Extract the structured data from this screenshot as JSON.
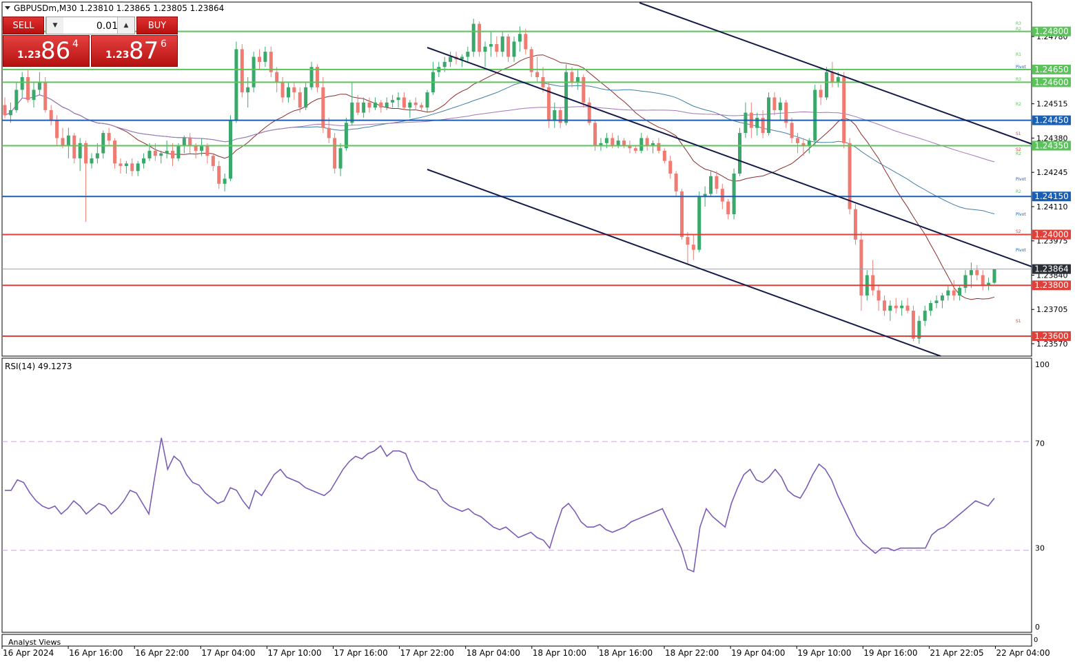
{
  "header": {
    "symbol_info": "GBPUSDm,M30  1.23810 1.23865 1.23805 1.23864"
  },
  "trade_panel": {
    "sell_label": "SELL",
    "buy_label": "BUY",
    "volume": "0.01",
    "bid_small": "1.23",
    "bid_big": "86",
    "bid_sup": "4",
    "ask_small": "1.23",
    "ask_big": "87",
    "ask_sup": "6"
  },
  "price_axis": {
    "ticks": [
      "1.24780",
      "1.24515",
      "1.24380",
      "1.24245",
      "1.24110",
      "1.23975",
      "1.23840",
      "1.23705",
      "1.23570"
    ]
  },
  "level_tags": [
    {
      "label": "1.24800",
      "color": "#5cc35c"
    },
    {
      "label": "1.24650",
      "color": "#5cc35c"
    },
    {
      "label": "1.24600",
      "color": "#5cc35c"
    },
    {
      "label": "1.24450",
      "color": "#1a5fb4"
    },
    {
      "label": "1.24350",
      "color": "#5cc35c"
    },
    {
      "label": "1.24150",
      "color": "#1a5fb4"
    },
    {
      "label": "1.24000",
      "color": "#e0403a"
    },
    {
      "label": "1.23864",
      "color": "#2a2f35"
    },
    {
      "label": "1.23800",
      "color": "#e0403a"
    },
    {
      "label": "1.23600",
      "color": "#e0403a"
    }
  ],
  "pivot_labels": [
    {
      "text": "R3",
      "color": "#5cc35c"
    },
    {
      "text": "R2",
      "color": "#5cc35c"
    },
    {
      "text": "R1",
      "color": "#5cc35c"
    },
    {
      "text": "Pivot",
      "color": "#1a5fb4"
    },
    {
      "text": "R3",
      "color": "#5cc35c"
    },
    {
      "text": "R2",
      "color": "#5cc35c"
    },
    {
      "text": "S1",
      "color": "#e0403a"
    },
    {
      "text": "S2",
      "color": "#e0403a"
    },
    {
      "text": "R2",
      "color": "#5cc35c"
    },
    {
      "text": "Pivot",
      "color": "#1a5fb4"
    },
    {
      "text": "R2",
      "color": "#5cc35c"
    },
    {
      "text": "Pivot",
      "color": "#1a5fb4"
    },
    {
      "text": "S2",
      "color": "#e0403a"
    },
    {
      "text": "Pivot",
      "color": "#1a5fb4"
    },
    {
      "text": "S1",
      "color": "#e0403a"
    }
  ],
  "rsi": {
    "label": "RSI(14) 49.1273",
    "axis_labels": [
      "100",
      "70",
      "30",
      "0"
    ],
    "values": [
      52,
      52,
      56,
      55,
      51,
      48,
      46,
      45,
      46,
      43,
      45,
      48,
      46,
      43,
      45,
      47,
      46,
      43,
      45,
      48,
      52,
      51,
      47,
      43,
      58,
      72,
      60,
      65,
      63,
      58,
      55,
      54,
      51,
      49,
      47,
      48,
      53,
      52,
      48,
      45,
      52,
      50,
      54,
      58,
      60,
      57,
      56,
      55,
      53,
      52,
      51,
      50,
      52,
      56,
      60,
      63,
      65,
      64,
      66,
      67,
      69,
      65,
      67,
      67,
      66,
      60,
      56,
      55,
      53,
      52,
      48,
      46,
      45,
      44,
      45,
      43,
      42,
      40,
      38,
      37,
      38,
      36,
      34,
      35,
      36,
      34,
      33,
      30,
      38,
      45,
      47,
      44,
      40,
      38,
      38,
      39,
      37,
      36,
      37,
      38,
      40,
      41,
      42,
      43,
      44,
      45,
      40,
      35,
      30,
      22,
      21,
      38,
      45,
      42,
      40,
      38,
      47,
      53,
      58,
      60,
      56,
      55,
      57,
      60,
      57,
      52,
      50,
      49,
      53,
      58,
      62,
      60,
      56,
      50,
      45,
      40,
      35,
      32,
      30,
      28,
      30,
      30,
      29,
      30,
      30,
      30,
      30,
      30,
      35,
      37,
      38,
      40,
      42,
      44,
      46,
      48,
      47,
      46,
      49
    ],
    "color": "#7a5bb5"
  },
  "time_axis": {
    "labels": [
      "16 Apr 2024",
      "16 Apr 16:00",
      "16 Apr 22:00",
      "17 Apr 04:00",
      "17 Apr 10:00",
      "17 Apr 16:00",
      "17 Apr 22:00",
      "18 Apr 04:00",
      "18 Apr 10:00",
      "18 Apr 16:00",
      "18 Apr 22:00",
      "19 Apr 04:00",
      "19 Apr 10:00",
      "19 Apr 16:00",
      "21 Apr 22:05",
      "22 Apr 04:00"
    ]
  },
  "analyst_views_label": "Analyst Views",
  "sub_axis_zero": "0",
  "colors": {
    "bull": "#3aa86a",
    "bear": "#ef7b73",
    "ma_fast": "#8b2a2a",
    "ma_mid": "#3f7ea8",
    "ma_slow": "#a274b8",
    "channel": "#141a4a"
  },
  "candles": [
    [
      1.2451,
      1.2454,
      1.2446,
      1.2447
    ],
    [
      1.2447,
      1.2452,
      1.2444,
      1.2449
    ],
    [
      1.2449,
      1.246,
      1.2448,
      1.2457
    ],
    [
      1.2457,
      1.2464,
      1.2454,
      1.2462
    ],
    [
      1.2462,
      1.2465,
      1.2452,
      1.2453
    ],
    [
      1.2453,
      1.246,
      1.245,
      1.2457
    ],
    [
      1.2457,
      1.2464,
      1.2455,
      1.246
    ],
    [
      1.246,
      1.2462,
      1.2448,
      1.2449
    ],
    [
      1.2449,
      1.2451,
      1.2443,
      1.2445
    ],
    [
      1.2445,
      1.2447,
      1.2435,
      1.2438
    ],
    [
      1.2438,
      1.2442,
      1.2434,
      1.2435
    ],
    [
      1.2435,
      1.2442,
      1.243,
      1.2439
    ],
    [
      1.2439,
      1.244,
      1.2428,
      1.243
    ],
    [
      1.243,
      1.2438,
      1.2425,
      1.2436
    ],
    [
      1.2436,
      1.2437,
      1.2405,
      1.2428
    ],
    [
      1.2428,
      1.2432,
      1.2426,
      1.243
    ],
    [
      1.243,
      1.2436,
      1.2428,
      1.2432
    ],
    [
      1.2432,
      1.2441,
      1.243,
      1.244
    ],
    [
      1.244,
      1.2442,
      1.2435,
      1.2437
    ],
    [
      1.2437,
      1.2438,
      1.2426,
      1.2428
    ],
    [
      1.2428,
      1.243,
      1.2424,
      1.2427
    ],
    [
      1.2427,
      1.2429,
      1.2424,
      1.2428
    ],
    [
      1.2428,
      1.243,
      1.2423,
      1.2425
    ],
    [
      1.2425,
      1.2429,
      1.2423,
      1.2428
    ],
    [
      1.2428,
      1.2432,
      1.2426,
      1.243
    ],
    [
      1.243,
      1.2436,
      1.2429,
      1.2433
    ],
    [
      1.2433,
      1.2436,
      1.2429,
      1.2431
    ],
    [
      1.2431,
      1.2433,
      1.2428,
      1.2432
    ],
    [
      1.2432,
      1.2437,
      1.243,
      1.2433
    ],
    [
      1.2433,
      1.2436,
      1.2427,
      1.243
    ],
    [
      1.243,
      1.2436,
      1.2429,
      1.2435
    ],
    [
      1.2435,
      1.2439,
      1.2432,
      1.2438
    ],
    [
      1.2438,
      1.244,
      1.2432,
      1.2435
    ],
    [
      1.2435,
      1.2436,
      1.243,
      1.2433
    ],
    [
      1.2433,
      1.2438,
      1.2431,
      1.2435
    ],
    [
      1.2435,
      1.2436,
      1.2428,
      1.2431
    ],
    [
      1.2431,
      1.2432,
      1.2425,
      1.2427
    ],
    [
      1.2427,
      1.2429,
      1.2418,
      1.242
    ],
    [
      1.242,
      1.2424,
      1.2417,
      1.2422
    ],
    [
      1.2422,
      1.2447,
      1.2421,
      1.2445
    ],
    [
      1.2445,
      1.2476,
      1.2444,
      1.2473
    ],
    [
      1.2473,
      1.2475,
      1.2454,
      1.2456
    ],
    [
      1.2456,
      1.2462,
      1.245,
      1.2458
    ],
    [
      1.2458,
      1.2472,
      1.2456,
      1.247
    ],
    [
      1.247,
      1.2473,
      1.2465,
      1.2468
    ],
    [
      1.2468,
      1.2474,
      1.2466,
      1.2472
    ],
    [
      1.2472,
      1.2474,
      1.2462,
      1.2464
    ],
    [
      1.2464,
      1.2466,
      1.2456,
      1.246
    ],
    [
      1.246,
      1.2462,
      1.2452,
      1.2454
    ],
    [
      1.2454,
      1.246,
      1.2452,
      1.2458
    ],
    [
      1.2458,
      1.246,
      1.2453,
      1.2456
    ],
    [
      1.2456,
      1.2458,
      1.2448,
      1.245
    ],
    [
      1.245,
      1.246,
      1.2449,
      1.2458
    ],
    [
      1.2458,
      1.2468,
      1.2457,
      1.2466
    ],
    [
      1.2466,
      1.2467,
      1.2456,
      1.2458
    ],
    [
      1.2458,
      1.2462,
      1.244,
      1.2442
    ],
    [
      1.2442,
      1.2446,
      1.2436,
      1.2438
    ],
    [
      1.2438,
      1.244,
      1.2424,
      1.2426
    ],
    [
      1.2426,
      1.2436,
      1.2423,
      1.2434
    ],
    [
      1.2434,
      1.2446,
      1.2433,
      1.2444
    ],
    [
      1.2444,
      1.246,
      1.2443,
      1.2452
    ],
    [
      1.2452,
      1.2455,
      1.2447,
      1.2448
    ],
    [
      1.2448,
      1.2454,
      1.2446,
      1.2452
    ],
    [
      1.2452,
      1.2454,
      1.2448,
      1.245
    ],
    [
      1.245,
      1.2454,
      1.2449,
      1.2452
    ],
    [
      1.2452,
      1.2453,
      1.2448,
      1.245
    ],
    [
      1.245,
      1.2454,
      1.2449,
      1.2452
    ],
    [
      1.2452,
      1.2455,
      1.245,
      1.2453
    ],
    [
      1.2453,
      1.2456,
      1.245,
      1.2454
    ],
    [
      1.2454,
      1.2456,
      1.2449,
      1.245
    ],
    [
      1.245,
      1.2453,
      1.2446,
      1.2452
    ],
    [
      1.2452,
      1.2454,
      1.2449,
      1.2451
    ],
    [
      1.2451,
      1.2452,
      1.2449,
      1.245
    ],
    [
      1.245,
      1.2457,
      1.2448,
      1.2456
    ],
    [
      1.2456,
      1.2468,
      1.2455,
      1.2464
    ],
    [
      1.2464,
      1.2468,
      1.2462,
      1.2466
    ],
    [
      1.2466,
      1.247,
      1.2464,
      1.2468
    ],
    [
      1.2468,
      1.2472,
      1.2466,
      1.247
    ],
    [
      1.247,
      1.2472,
      1.2467,
      1.2469
    ],
    [
      1.2469,
      1.2471,
      1.2466,
      1.247
    ],
    [
      1.247,
      1.2474,
      1.2468,
      1.2472
    ],
    [
      1.2472,
      1.2485,
      1.247,
      1.2483
    ],
    [
      1.2483,
      1.2484,
      1.247,
      1.2472
    ],
    [
      1.2472,
      1.2476,
      1.2466,
      1.2474
    ],
    [
      1.2474,
      1.248,
      1.247,
      1.2475
    ],
    [
      1.2475,
      1.2478,
      1.247,
      1.2472
    ],
    [
      1.2472,
      1.248,
      1.247,
      1.2478
    ],
    [
      1.2478,
      1.2479,
      1.2468,
      1.247
    ],
    [
      1.247,
      1.2478,
      1.2468,
      1.2476
    ],
    [
      1.2476,
      1.2482,
      1.2472,
      1.2479
    ],
    [
      1.2479,
      1.2481,
      1.2471,
      1.2473
    ],
    [
      1.2473,
      1.2474,
      1.2462,
      1.2464
    ],
    [
      1.2464,
      1.247,
      1.246,
      1.2462
    ],
    [
      1.2462,
      1.2466,
      1.2456,
      1.2458
    ],
    [
      1.2458,
      1.246,
      1.2442,
      1.2445
    ],
    [
      1.2445,
      1.2452,
      1.2442,
      1.2449
    ],
    [
      1.2449,
      1.245,
      1.2442,
      1.2444
    ],
    [
      1.2444,
      1.2467,
      1.2443,
      1.2464
    ],
    [
      1.2464,
      1.2466,
      1.2458,
      1.246
    ],
    [
      1.246,
      1.2465,
      1.2457,
      1.2462
    ],
    [
      1.2462,
      1.2463,
      1.245,
      1.2452
    ],
    [
      1.2452,
      1.2454,
      1.2443,
      1.2444
    ],
    [
      1.2444,
      1.2445,
      1.2433,
      1.2435
    ],
    [
      1.2435,
      1.2438,
      1.2433,
      1.2436
    ],
    [
      1.2436,
      1.244,
      1.2434,
      1.2438
    ],
    [
      1.2438,
      1.244,
      1.2434,
      1.2435
    ],
    [
      1.2435,
      1.2439,
      1.2434,
      1.2437
    ],
    [
      1.2437,
      1.2438,
      1.2434,
      1.2435
    ],
    [
      1.2435,
      1.2437,
      1.2432,
      1.2434
    ],
    [
      1.2434,
      1.2435,
      1.2432,
      1.2433
    ],
    [
      1.2433,
      1.244,
      1.2432,
      1.2438
    ],
    [
      1.2438,
      1.2439,
      1.2433,
      1.2435
    ],
    [
      1.2435,
      1.2437,
      1.2432,
      1.2436
    ],
    [
      1.2436,
      1.2438,
      1.2432,
      1.2433
    ],
    [
      1.2433,
      1.2434,
      1.2428,
      1.2429
    ],
    [
      1.2429,
      1.2431,
      1.2422,
      1.2424
    ],
    [
      1.2424,
      1.2425,
      1.2415,
      1.2417
    ],
    [
      1.2417,
      1.2418,
      1.2398,
      1.2399
    ],
    [
      1.2399,
      1.2401,
      1.2388,
      1.2396
    ],
    [
      1.2396,
      1.24,
      1.239,
      1.2394
    ],
    [
      1.2394,
      1.2417,
      1.2393,
      1.2415
    ],
    [
      1.2415,
      1.2419,
      1.2411,
      1.2416
    ],
    [
      1.2416,
      1.2425,
      1.2415,
      1.2423
    ],
    [
      1.2423,
      1.2425,
      1.2416,
      1.2418
    ],
    [
      1.2418,
      1.242,
      1.241,
      1.2413
    ],
    [
      1.2413,
      1.2414,
      1.2406,
      1.2408
    ],
    [
      1.2408,
      1.2426,
      1.2406,
      1.2424
    ],
    [
      1.2424,
      1.2442,
      1.2423,
      1.244
    ],
    [
      1.244,
      1.2452,
      1.2438,
      1.2448
    ],
    [
      1.2448,
      1.2452,
      1.2438,
      1.2442
    ],
    [
      1.2442,
      1.2448,
      1.2439,
      1.2446
    ],
    [
      1.2446,
      1.2449,
      1.2438,
      1.244
    ],
    [
      1.244,
      1.2456,
      1.2439,
      1.2454
    ],
    [
      1.2454,
      1.2456,
      1.2447,
      1.2449
    ],
    [
      1.2449,
      1.2454,
      1.2445,
      1.2452
    ],
    [
      1.2452,
      1.2453,
      1.2442,
      1.2444
    ],
    [
      1.2444,
      1.2446,
      1.2436,
      1.2438
    ],
    [
      1.2438,
      1.244,
      1.2432,
      1.2436
    ],
    [
      1.2436,
      1.2438,
      1.2431,
      1.2435
    ],
    [
      1.2435,
      1.2438,
      1.2432,
      1.2437
    ],
    [
      1.2437,
      1.2459,
      1.2435,
      1.2457
    ],
    [
      1.2457,
      1.2459,
      1.2451,
      1.2454
    ],
    [
      1.2454,
      1.2466,
      1.2453,
      1.2464
    ],
    [
      1.2464,
      1.2468,
      1.2458,
      1.246
    ],
    [
      1.246,
      1.2464,
      1.2458,
      1.2462
    ],
    [
      1.2462,
      1.2464,
      1.2434,
      1.2436
    ],
    [
      1.2436,
      1.2438,
      1.2408,
      1.241
    ],
    [
      1.241,
      1.2412,
      1.2396,
      1.2398
    ],
    [
      1.2398,
      1.2401,
      1.237,
      1.2376
    ],
    [
      1.2376,
      1.2386,
      1.2374,
      1.2384
    ],
    [
      1.2384,
      1.239,
      1.2376,
      1.2378
    ],
    [
      1.2378,
      1.238,
      1.237,
      1.2374
    ],
    [
      1.2374,
      1.2376,
      1.2368,
      1.237
    ],
    [
      1.237,
      1.2374,
      1.2366,
      1.2372
    ],
    [
      1.2372,
      1.2375,
      1.2369,
      1.2371
    ],
    [
      1.2371,
      1.2374,
      1.2368,
      1.2372
    ],
    [
      1.2372,
      1.2375,
      1.2369,
      1.237
    ],
    [
      1.237,
      1.2372,
      1.2358,
      1.2359
    ],
    [
      1.2359,
      1.2368,
      1.2357,
      1.2366
    ],
    [
      1.2366,
      1.2372,
      1.2364,
      1.237
    ],
    [
      1.237,
      1.2374,
      1.2368,
      1.2373
    ],
    [
      1.2373,
      1.2376,
      1.2371,
      1.2374
    ],
    [
      1.2374,
      1.2377,
      1.2371,
      1.2376
    ],
    [
      1.2376,
      1.238,
      1.2374,
      1.2378
    ],
    [
      1.2378,
      1.2382,
      1.2374,
      1.2376
    ],
    [
      1.2376,
      1.238,
      1.2374,
      1.2379
    ],
    [
      1.2379,
      1.2386,
      1.2377,
      1.2384
    ],
    [
      1.2384,
      1.2389,
      1.2379,
      1.2386
    ],
    [
      1.2386,
      1.2388,
      1.2382,
      1.2384
    ],
    [
      1.2384,
      1.2386,
      1.2378,
      1.238
    ],
    [
      1.238,
      1.2383,
      1.2378,
      1.2381
    ],
    [
      1.2381,
      1.23865,
      1.23805,
      1.23864
    ]
  ]
}
